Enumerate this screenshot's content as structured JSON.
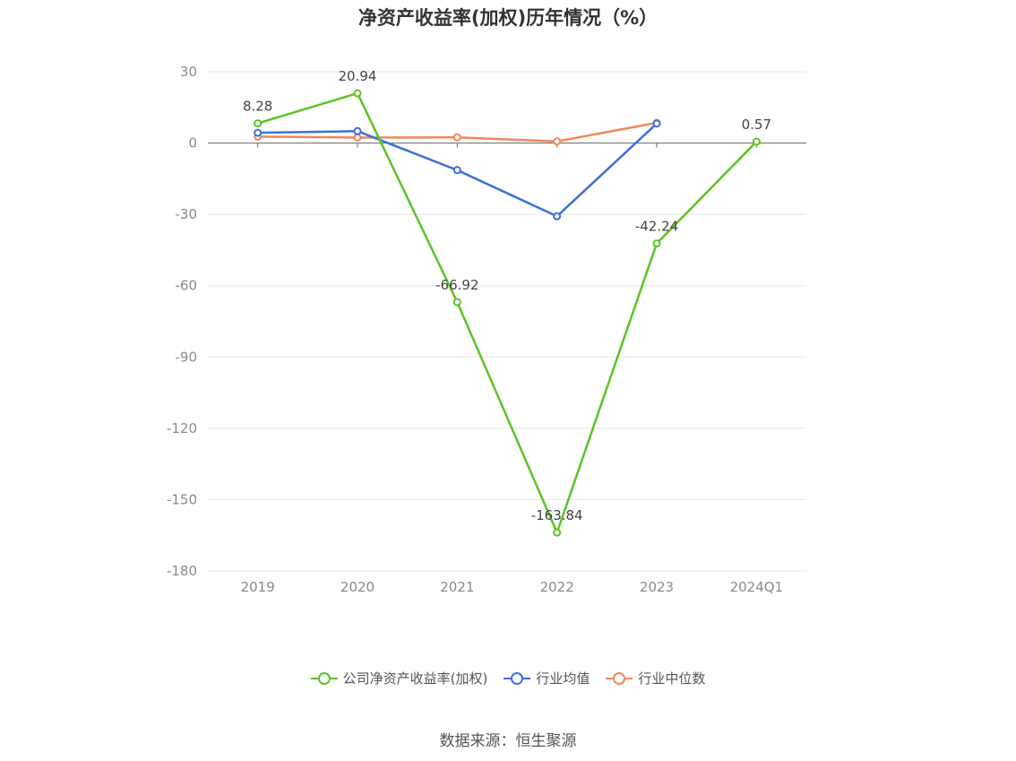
{
  "title": "净资产收益率(加权)历年情况（%）",
  "source": "数据来源：恒生聚源",
  "colors": {
    "company": "#5cc424",
    "industry_avg": "#3b6fdc",
    "industry_median": "#f0875a",
    "grid": "#e4e6f0",
    "zero_axis": "#666666"
  },
  "chart_data": {
    "type": "line",
    "title": "净资产收益率(加权)历年情况（%）",
    "categories": [
      "2019",
      "2020",
      "2021",
      "2022",
      "2023",
      "2024Q1"
    ],
    "ylim": [
      -180,
      30
    ],
    "yticks": [
      30,
      0,
      -30,
      -60,
      -90,
      -120,
      -150,
      -180
    ],
    "grid": true,
    "legend_position": "bottom",
    "series": [
      {
        "name": "公司净资产收益率(加权)",
        "values": [
          8.28,
          20.94,
          -66.92,
          -163.84,
          -42.24,
          0.57
        ],
        "labels": [
          "8.28",
          "20.94",
          "-66.92",
          "-163.84",
          "-42.24",
          "0.57"
        ],
        "color": "#5cc424"
      },
      {
        "name": "行业均值",
        "values": [
          4.3,
          5.0,
          -11.4,
          -30.8,
          8.2,
          null
        ],
        "color": "#3b6fdc"
      },
      {
        "name": "行业中位数",
        "values": [
          2.7,
          2.3,
          2.4,
          0.7,
          8.5,
          null
        ],
        "color": "#f0875a"
      }
    ]
  }
}
